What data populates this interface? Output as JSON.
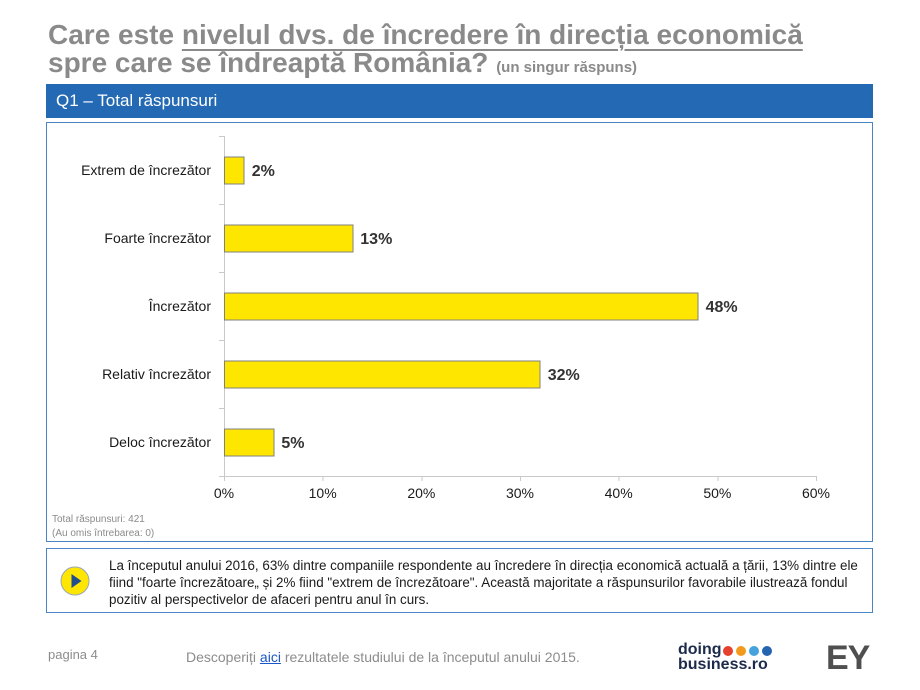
{
  "title": {
    "lead": "Care este ",
    "underlined": "nivelul dvs. de încredere în direcția economică",
    "line2": "spre care se îndreaptă România?",
    "note": "(un singur răspuns)"
  },
  "banner": {
    "label": "Q1 – Total răspunsuri"
  },
  "chart_data": {
    "type": "bar",
    "categories": [
      "Extrem de încrezător",
      "Foarte încrezător",
      "Încrezător",
      "Relativ încrezător",
      "Deloc încrezător"
    ],
    "values": [
      2,
      13,
      48,
      32,
      5
    ],
    "value_labels": [
      "2%",
      "13%",
      "48%",
      "32%",
      "5%"
    ],
    "xlim": [
      0,
      60
    ],
    "xticks": [
      0,
      10,
      20,
      30,
      40,
      50,
      60
    ],
    "xtick_labels": [
      "0%",
      "10%",
      "20%",
      "30%",
      "40%",
      "50%",
      "60%"
    ],
    "title": "",
    "xlabel": "",
    "ylabel": "",
    "grid": false,
    "bar_color": "#ffe600",
    "bar_stroke": "#808080"
  },
  "footnote": {
    "total": "Total răspunsuri: 421",
    "omitted": "(Au omis întrebarea: 0)"
  },
  "insight": {
    "icon": "play-arrow-icon",
    "lines": [
      "La începutul anului 2016, 63% dintre companiile respondente au încredere în direcția economică actuală a țării, 13% dintre ele",
      "fiind \"foarte încrezătoare„ și 2% fiind \"extrem de încrezătoare\". Această majoritate a răspunsurilor favorabile ilustrează fondul",
      "pozitiv al perspectivelor de afaceri pentru anul în curs."
    ]
  },
  "footer": {
    "page": "pagina 4",
    "discover_prefix": "Descoperiți ",
    "discover_link": "aici",
    "discover_suffix": " rezultatele studiului de la începutul anului 2015.",
    "logo_top": "doing",
    "logo_bottom": "business.ro",
    "logo_dots": [
      "#e5412d",
      "#f39a1e",
      "#45a2dc",
      "#2565b0"
    ],
    "ey_logo": "EY"
  },
  "colors": {
    "title": "#8a8a8a",
    "banner": "#2369b3",
    "border": "#4a84c4",
    "link": "#1b57c6"
  }
}
